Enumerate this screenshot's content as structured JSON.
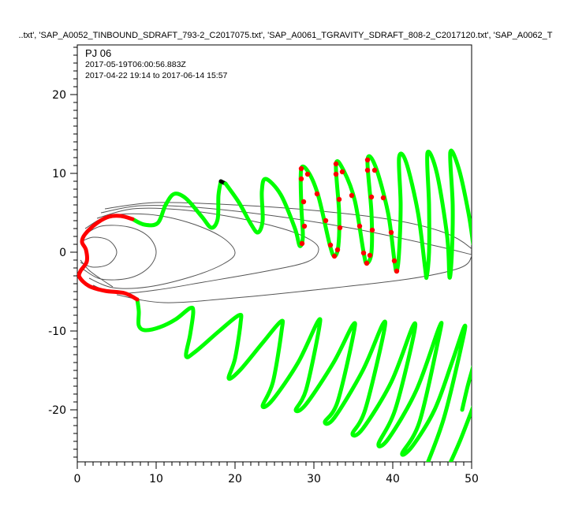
{
  "title": "..txt', 'SAP_A0052_TINBOUND_SDRAFT_793-2_C2017075.txt', 'SAP_A0061_TGRAVITY_SDRAFT_808-2_C2017120.txt', 'SAP_A0062_T",
  "annotation": {
    "label": "PJ 06",
    "time": "2017-05-19T06:00:56.883Z",
    "range": "2017-04-22 19:14 to 2017-06-14 15:57"
  },
  "colors": {
    "trajectory": "#00ff00",
    "highlight": "#ff0000",
    "marker": "#ff0000",
    "contour": "#555555",
    "trajectory_end": "#000000"
  },
  "chart_data": {
    "type": "line",
    "xlim": [
      0,
      50
    ],
    "ylim": [
      -26.6,
      26.3
    ],
    "xticks": [
      0,
      10,
      20,
      30,
      40,
      50
    ],
    "yticks": [
      -20,
      -10,
      0,
      10,
      20
    ],
    "xtick_labels": [
      "0",
      "10",
      "20",
      "30",
      "40",
      "50"
    ],
    "ytick_labels": [
      "-20",
      "-10",
      "0",
      "10",
      "20"
    ],
    "grid": false,
    "highlight_segment": [
      [
        7.6,
        -6
      ],
      [
        6,
        -5.2
      ],
      [
        3.5,
        -4.9
      ],
      [
        1.5,
        -4.3
      ],
      [
        0.3,
        -3.2
      ],
      [
        0.4,
        -2.4
      ],
      [
        1.2,
        -1.2
      ],
      [
        1.1,
        0.3
      ],
      [
        0.6,
        1.3
      ],
      [
        1,
        2.3
      ],
      [
        2.5,
        3.7
      ],
      [
        4,
        4.5
      ],
      [
        5.5,
        4.6
      ],
      [
        7,
        4.2
      ]
    ],
    "series": [
      {
        "color": "#00ff00",
        "points": [
          [
            7,
            4.2
          ],
          [
            8.5,
            3.5
          ],
          [
            10.2,
            3.7
          ],
          [
            11.2,
            6
          ],
          [
            12.3,
            7.4
          ],
          [
            13.8,
            6.8
          ],
          [
            15.8,
            4.5
          ],
          [
            17,
            3.1
          ],
          [
            17.8,
            4.2
          ],
          [
            17.9,
            7.2
          ],
          [
            18.2,
            9
          ]
        ]
      },
      {
        "color": "#000000",
        "points": [
          [
            18.2,
            9
          ],
          [
            18.8,
            8.7
          ]
        ]
      },
      {
        "color": "#00ff00",
        "points": [
          [
            18.8,
            8.7
          ],
          [
            20.5,
            6.3
          ],
          [
            22,
            3.6
          ],
          [
            22.9,
            2.5
          ],
          [
            23.5,
            4
          ],
          [
            23.4,
            7.7
          ],
          [
            23.9,
            9.3
          ],
          [
            25.8,
            7.3
          ],
          [
            27.6,
            3
          ],
          [
            28.2,
            0.8
          ],
          [
            28.6,
            2
          ],
          [
            28.4,
            6
          ],
          [
            28.4,
            10.6
          ],
          [
            29.4,
            10
          ],
          [
            30.6,
            7
          ],
          [
            32,
            1
          ],
          [
            32.6,
            -0.5
          ],
          [
            33.1,
            0.8
          ],
          [
            33.2,
            5
          ],
          [
            32.8,
            11.2
          ],
          [
            33.8,
            10.3
          ],
          [
            35.2,
            6.5
          ],
          [
            36.3,
            0
          ],
          [
            36.7,
            -1.4
          ],
          [
            37.3,
            0
          ],
          [
            37.3,
            5
          ],
          [
            36.8,
            11.7
          ],
          [
            37.8,
            10.9
          ],
          [
            39.4,
            5
          ],
          [
            40.2,
            -1
          ],
          [
            40.5,
            -2.4
          ],
          [
            40.8,
            0
          ],
          [
            41,
            6
          ],
          [
            40.8,
            12
          ],
          [
            41.7,
            11.4
          ],
          [
            43.2,
            5
          ],
          [
            44.1,
            -2
          ],
          [
            44.3,
            -3.1
          ],
          [
            44.6,
            0
          ],
          [
            44.6,
            6
          ],
          [
            44.4,
            12.6
          ],
          [
            45.6,
            10
          ],
          [
            46.9,
            2
          ],
          [
            47.2,
            -3.2
          ],
          [
            47.5,
            0
          ],
          [
            47.6,
            6
          ],
          [
            47.3,
            12.7
          ],
          [
            48.4,
            10.5
          ],
          [
            49.6,
            5
          ],
          [
            50.2,
            1
          ]
        ]
      },
      {
        "color": "#00ff00",
        "points": [
          [
            7.6,
            -6
          ],
          [
            7.8,
            -7.5
          ],
          [
            7.8,
            -9.3
          ],
          [
            8.6,
            -9.9
          ],
          [
            10.5,
            -9.5
          ],
          [
            12.5,
            -8.5
          ],
          [
            14.3,
            -7.1
          ],
          [
            14.7,
            -7.6
          ],
          [
            14.3,
            -10.5
          ],
          [
            13.8,
            -13.2
          ],
          [
            15,
            -12.6
          ],
          [
            18,
            -10
          ],
          [
            20.5,
            -8
          ],
          [
            20.7,
            -9
          ],
          [
            20,
            -13.5
          ],
          [
            19.2,
            -16
          ],
          [
            20.6,
            -15
          ],
          [
            23.5,
            -11.5
          ],
          [
            25.8,
            -8.8
          ],
          [
            25.9,
            -10
          ],
          [
            24.8,
            -16.5
          ],
          [
            23.5,
            -19.5
          ],
          [
            24.8,
            -18.7
          ],
          [
            28,
            -14
          ],
          [
            30.5,
            -8.8
          ],
          [
            30.6,
            -10
          ],
          [
            29,
            -17.5
          ],
          [
            27.7,
            -20
          ],
          [
            29,
            -19.3
          ],
          [
            32.5,
            -14
          ],
          [
            34.9,
            -9.3
          ],
          [
            35,
            -10.5
          ],
          [
            33,
            -19
          ],
          [
            31.4,
            -21.5
          ],
          [
            32.6,
            -21
          ],
          [
            36.2,
            -15
          ],
          [
            38.7,
            -9.2
          ],
          [
            38.8,
            -10.5
          ],
          [
            36.5,
            -20
          ],
          [
            34.9,
            -23
          ],
          [
            36.2,
            -22.4
          ],
          [
            39.8,
            -16.5
          ],
          [
            42.5,
            -9.5
          ],
          [
            42.6,
            -10.8
          ],
          [
            40.3,
            -20
          ],
          [
            38.2,
            -24.3
          ],
          [
            39.5,
            -23.6
          ],
          [
            43,
            -17.5
          ],
          [
            45.9,
            -9.5
          ],
          [
            45.8,
            -11
          ],
          [
            43.4,
            -21.5
          ],
          [
            41.2,
            -25.5
          ],
          [
            42.5,
            -24.6
          ],
          [
            45.3,
            -20
          ],
          [
            47.5,
            -14
          ],
          [
            49,
            -9.6
          ],
          [
            48.9,
            -11
          ],
          [
            46.5,
            -21
          ],
          [
            44,
            -27.8
          ]
        ]
      },
      {
        "color": "#00ff00",
        "points": [
          [
            46.8,
            -27.8
          ],
          [
            48.5,
            -24
          ],
          [
            50.2,
            -19.6
          ]
        ]
      },
      {
        "color": "#00ff00",
        "points": [
          [
            50.2,
            -14.5
          ],
          [
            49.5,
            -17
          ],
          [
            48.8,
            -20
          ]
        ]
      }
    ],
    "markers": [
      [
        28.4,
        10.6
      ],
      [
        29.2,
        9.9
      ],
      [
        28.4,
        9.3
      ],
      [
        30.4,
        7.4
      ],
      [
        28.7,
        6.4
      ],
      [
        31.5,
        4.0
      ],
      [
        28.8,
        3.3
      ],
      [
        32.1,
        0.9
      ],
      [
        28.5,
        1.1
      ],
      [
        33.0,
        0.3
      ],
      [
        32.6,
        -0.5
      ],
      [
        32.8,
        11.2
      ],
      [
        33.6,
        10.2
      ],
      [
        32.8,
        9.9
      ],
      [
        33.2,
        6.7
      ],
      [
        34.8,
        7.2
      ],
      [
        33.3,
        3.1
      ],
      [
        35.8,
        3.3
      ],
      [
        36.3,
        -0.1
      ],
      [
        37.1,
        -0.4
      ],
      [
        36.7,
        -1.4
      ],
      [
        36.8,
        11.7
      ],
      [
        36.8,
        10.4
      ],
      [
        37.7,
        10.4
      ],
      [
        37.3,
        7.0
      ],
      [
        38.8,
        6.9
      ],
      [
        37.4,
        2.8
      ],
      [
        39.8,
        2.5
      ],
      [
        40.2,
        -1.1
      ],
      [
        40.5,
        -2.4
      ]
    ],
    "contours": [
      [
        [
          0.4,
          1.3
        ],
        [
          2,
          1.9
        ],
        [
          4,
          1.5
        ],
        [
          5,
          0
        ],
        [
          4,
          -1.5
        ],
        [
          2,
          -1.9
        ],
        [
          0.4,
          -1.3
        ]
      ],
      [
        [
          0.6,
          2
        ],
        [
          3,
          3.3
        ],
        [
          6.5,
          3.2
        ],
        [
          9,
          2
        ],
        [
          10,
          0
        ],
        [
          9,
          -2
        ],
        [
          6.5,
          -3.3
        ],
        [
          3,
          -3.4
        ],
        [
          0.8,
          -2.2
        ]
      ],
      [
        [
          1,
          3
        ],
        [
          4,
          4.6
        ],
        [
          9,
          4.8
        ],
        [
          14,
          3.8
        ],
        [
          18.2,
          2
        ],
        [
          20,
          0
        ],
        [
          18.5,
          -1.5
        ],
        [
          14.5,
          -3.1
        ],
        [
          9,
          -4.4
        ],
        [
          4.5,
          -4.5
        ],
        [
          1.5,
          -3.3
        ]
      ],
      [
        [
          2.5,
          4.3
        ],
        [
          7,
          5.5
        ],
        [
          13,
          5.4
        ],
        [
          20,
          4.4
        ],
        [
          26,
          3
        ],
        [
          29.5,
          1.6
        ],
        [
          30.6,
          0.3
        ],
        [
          29.2,
          -1.2
        ],
        [
          24,
          -2.4
        ],
        [
          16,
          -3.8
        ],
        [
          10,
          -4.8
        ],
        [
          5,
          -5.2
        ],
        [
          2,
          -4.2
        ]
      ],
      [
        [
          3.5,
          5.5
        ],
        [
          10,
          6.3
        ],
        [
          20,
          6
        ],
        [
          30,
          5.3
        ],
        [
          40,
          4.1
        ],
        [
          46.5,
          2.5
        ],
        [
          49.8,
          0.6
        ],
        [
          50,
          -0.5
        ],
        [
          48.5,
          -2
        ],
        [
          42,
          -3.4
        ],
        [
          30,
          -4.8
        ],
        [
          20,
          -5.8
        ],
        [
          11,
          -6.4
        ],
        [
          5,
          -5.4
        ]
      ],
      [
        [
          3,
          5
        ],
        [
          8,
          5.9
        ],
        [
          15,
          5.7
        ],
        [
          25,
          4.6
        ],
        [
          35,
          3
        ],
        [
          45,
          0.9
        ],
        [
          50,
          -0.3
        ]
      ],
      [
        [
          0.4,
          -1
        ],
        [
          1.5,
          -2.3
        ],
        [
          3,
          -3.4
        ],
        [
          4.5,
          -4.4
        ]
      ]
    ]
  }
}
